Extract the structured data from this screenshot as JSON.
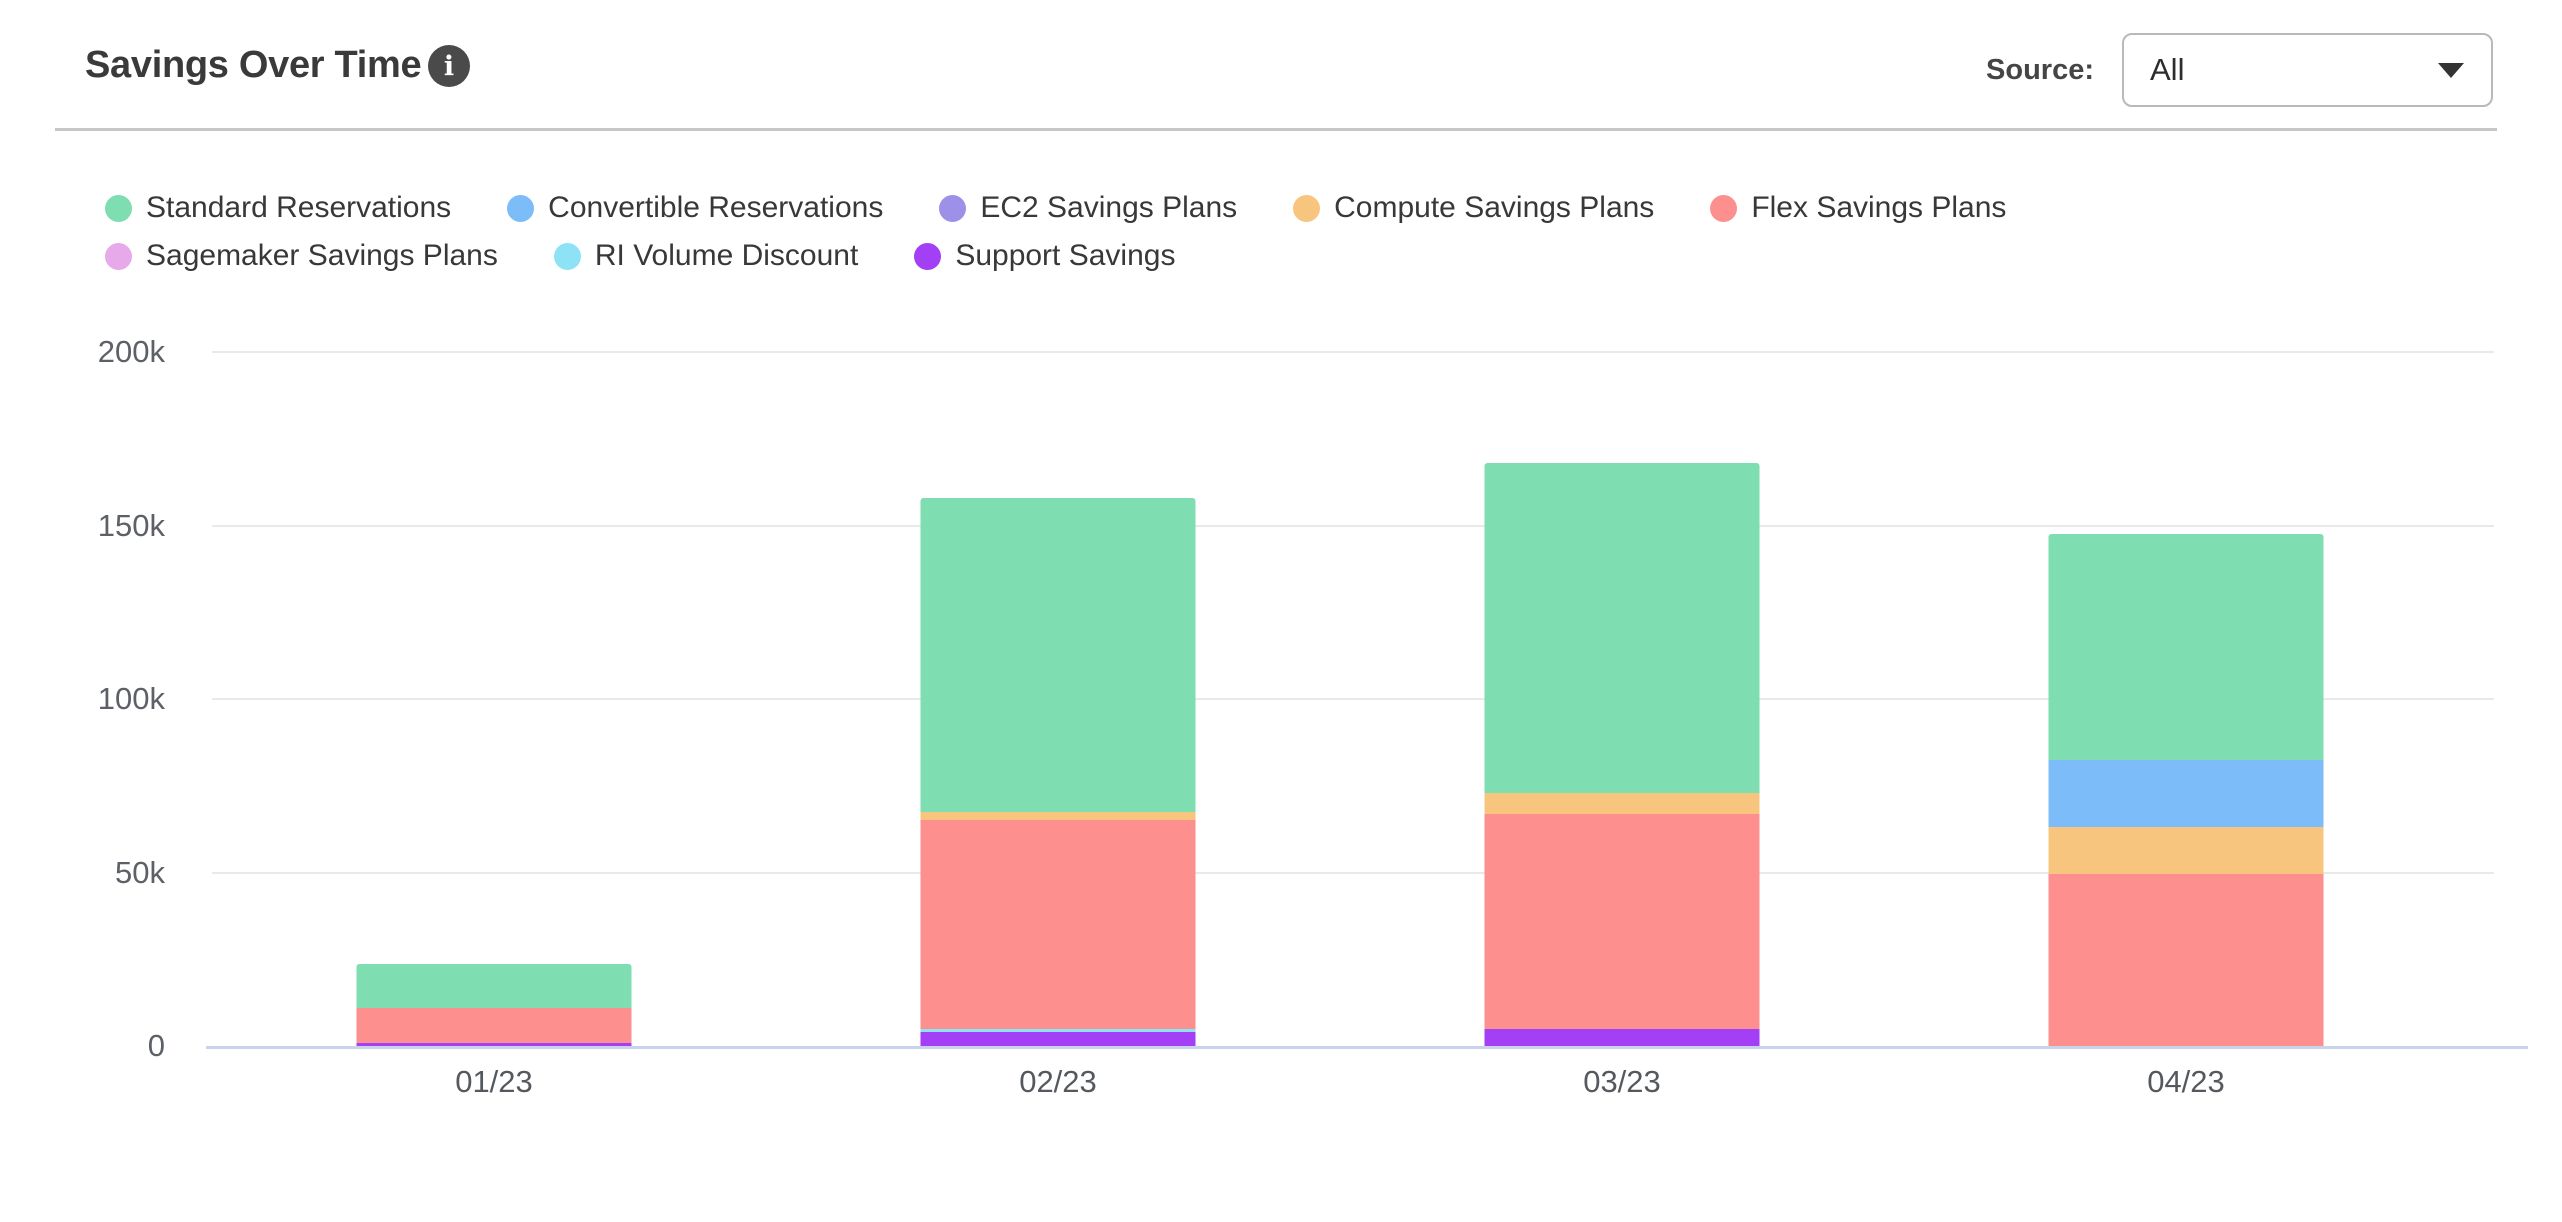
{
  "header": {
    "title": "Savings Over Time",
    "info_icon": "i",
    "source_label": "Source:",
    "source_value": "All"
  },
  "colors": {
    "title_text": "#3a3a3a",
    "grid_line": "#e9e9e9",
    "axis_line": "#c9d3ec",
    "tick_text": "#5d6167",
    "legend_text": "#383838",
    "divider": "#c6c6c6",
    "dropdown_border": "#b9b9b9",
    "info_icon_bg": "#4a4a4a"
  },
  "chart_data": {
    "type": "bar",
    "stacked": true,
    "stack_order": "reverse-of-series (last series at bottom)",
    "title": "Savings Over Time",
    "xlabel": "",
    "ylabel": "",
    "ylim": [
      0,
      200000
    ],
    "grid": true,
    "legend_position": "top-left",
    "legend_rows": [
      5,
      3
    ],
    "categories": [
      "01/23",
      "02/23",
      "03/23",
      "04/23"
    ],
    "yticks": [
      {
        "value": 0,
        "label": "0"
      },
      {
        "value": 50000,
        "label": "50k"
      },
      {
        "value": 100000,
        "label": "100k"
      },
      {
        "value": 150000,
        "label": "150k"
      },
      {
        "value": 200000,
        "label": "200k"
      }
    ],
    "series": [
      {
        "name": "Standard Reservations",
        "color": "#7eddb1",
        "values": [
          12500,
          90500,
          95000,
          65000
        ]
      },
      {
        "name": "Convertible Reservations",
        "color": "#7cbcf9",
        "values": [
          0,
          0,
          0,
          19500
        ]
      },
      {
        "name": "EC2 Savings Plans",
        "color": "#9c90e9",
        "values": [
          0,
          0,
          0,
          0
        ]
      },
      {
        "name": "Compute Savings Plans",
        "color": "#f8c57f",
        "values": [
          0,
          2500,
          6000,
          13500
        ]
      },
      {
        "name": "Flex Savings Plans",
        "color": "#fd8f8f",
        "values": [
          10000,
          60000,
          62000,
          49500
        ]
      },
      {
        "name": "Sagemaker Savings Plans",
        "color": "#e7a9ea",
        "values": [
          0,
          0,
          0,
          0
        ]
      },
      {
        "name": "RI Volume Discount",
        "color": "#8ee2f5",
        "values": [
          0,
          1000,
          0,
          0
        ]
      },
      {
        "name": "Support Savings",
        "color": "#a33ff4",
        "values": [
          1000,
          4000,
          5000,
          0
        ]
      }
    ],
    "totals": [
      23500,
      158000,
      168000,
      147500
    ]
  }
}
